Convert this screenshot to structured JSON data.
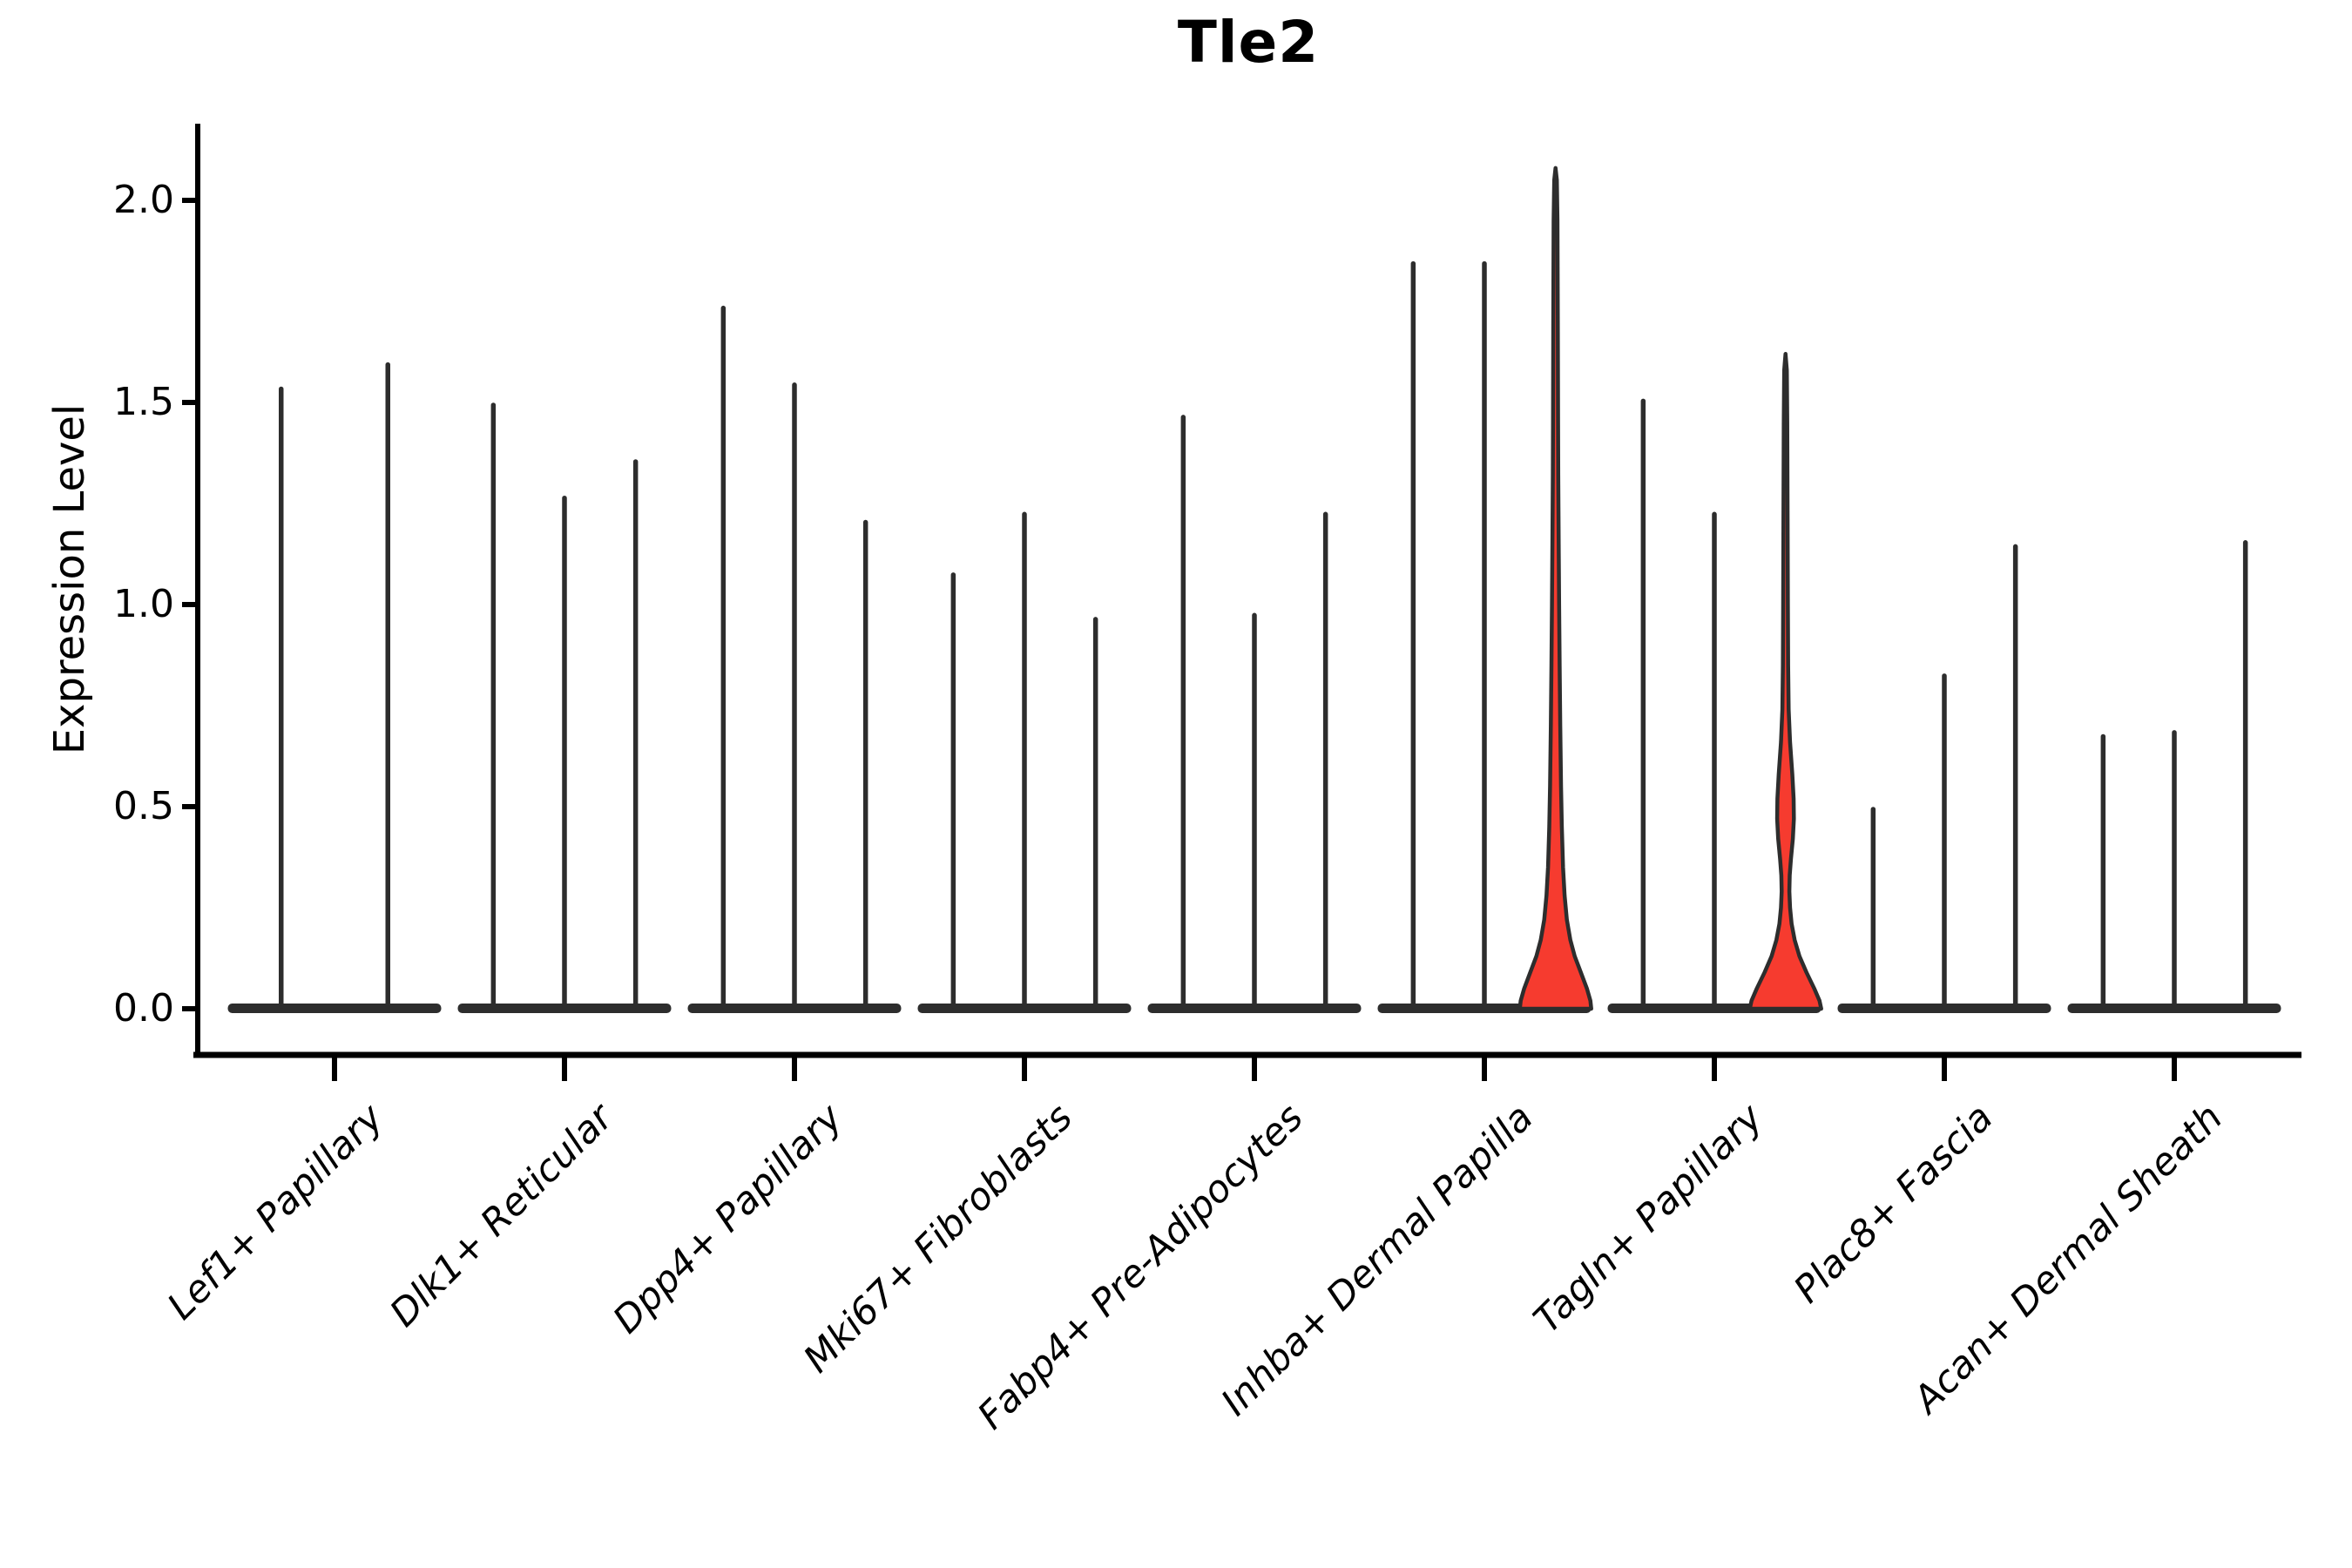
{
  "title": "Tle2",
  "y_axis": {
    "label": "Expression Level",
    "ticks": [
      {
        "label": "2.0",
        "value": 2.0
      },
      {
        "label": "1.5",
        "value": 1.5
      },
      {
        "label": "1.0",
        "value": 1.0
      },
      {
        "label": "0.5",
        "value": 0.5
      },
      {
        "label": "0.0",
        "value": 0.0
      }
    ]
  },
  "chart_data": {
    "type": "violin",
    "title": "Tle2",
    "xlabel": "",
    "ylabel": "Expression Level",
    "ylim": [
      0,
      2.2
    ],
    "grid": false,
    "legend": "none",
    "description": "Split violin plot of Tle2 expression per fibroblast cluster; most violins collapse to a baseline blob at 0 with a thin spike to the max expression; two violins are highlighted red.",
    "categories": [
      "Lef1+ Papillary",
      "Dlk1+ Reticular",
      "Dpp4+ Papillary",
      "Mki67+ Fibroblasts",
      "Fabp4+ Pre-Adipocytes",
      "Inhba+ Dermal Papilla",
      "Tagln+ Papillary",
      "Plac8+ Fascia",
      "Acan+ Dermal Sheath"
    ],
    "groups": [
      {
        "category": "Lef1+ Papillary",
        "violins": [
          {
            "max": 1.54
          },
          {
            "max": 1.6
          }
        ]
      },
      {
        "category": "Dlk1+ Reticular",
        "violins": [
          {
            "max": 1.5
          },
          {
            "max": 1.27
          },
          {
            "max": 1.36
          }
        ]
      },
      {
        "category": "Dpp4+ Papillary",
        "violins": [
          {
            "max": 1.74
          },
          {
            "max": 1.55
          },
          {
            "max": 1.21
          }
        ]
      },
      {
        "category": "Mki67+ Fibroblasts",
        "violins": [
          {
            "max": 1.08
          },
          {
            "max": 1.23
          },
          {
            "max": 0.97
          }
        ]
      },
      {
        "category": "Fabp4+ Pre-Adipocytes",
        "violins": [
          {
            "max": 1.47
          },
          {
            "max": 0.98
          },
          {
            "max": 1.23
          }
        ]
      },
      {
        "category": "Inhba+ Dermal Papilla",
        "violins": [
          {
            "max": 1.85
          },
          {
            "max": 1.85
          },
          {
            "max": 2.08,
            "highlight": true,
            "profile": [
              [
                2.08,
                0
              ],
              [
                2.05,
                1.5
              ],
              [
                1.95,
                2.2
              ],
              [
                1.7,
                2.6
              ],
              [
                1.45,
                2.9
              ],
              [
                1.32,
                3.1
              ],
              [
                1.15,
                3.6
              ],
              [
                1.0,
                4.1
              ],
              [
                0.85,
                4.7
              ],
              [
                0.7,
                5.4
              ],
              [
                0.55,
                6.3
              ],
              [
                0.45,
                7.2
              ],
              [
                0.35,
                8.6
              ],
              [
                0.28,
                10.4
              ],
              [
                0.22,
                13
              ],
              [
                0.17,
                17
              ],
              [
                0.13,
                22
              ],
              [
                0.09,
                29
              ],
              [
                0.05,
                36
              ],
              [
                0.02,
                40
              ],
              [
                0.0,
                41
              ]
            ]
          }
        ]
      },
      {
        "category": "Tagln+ Papillary",
        "violins": [
          {
            "max": 1.51
          },
          {
            "max": 1.23
          },
          {
            "max": 1.62,
            "highlight": true,
            "profile": [
              [
                1.62,
                0
              ],
              [
                1.58,
                1.5
              ],
              [
                1.45,
                2.0
              ],
              [
                1.2,
                2.4
              ],
              [
                1.0,
                2.7
              ],
              [
                0.85,
                3.0
              ],
              [
                0.74,
                3.6
              ],
              [
                0.66,
                5.2
              ],
              [
                0.58,
                7.8
              ],
              [
                0.52,
                9.3
              ],
              [
                0.47,
                9.6
              ],
              [
                0.42,
                8.4
              ],
              [
                0.37,
                6.2
              ],
              [
                0.33,
                4.8
              ],
              [
                0.29,
                4.4
              ],
              [
                0.25,
                5.2
              ],
              [
                0.21,
                7
              ],
              [
                0.17,
                10.5
              ],
              [
                0.13,
                16
              ],
              [
                0.09,
                24
              ],
              [
                0.05,
                33
              ],
              [
                0.02,
                39
              ],
              [
                0.0,
                41
              ]
            ]
          }
        ]
      },
      {
        "category": "Plac8+ Fascia",
        "violins": [
          {
            "max": 0.5
          },
          {
            "max": 0.83
          },
          {
            "max": 1.15
          }
        ]
      },
      {
        "category": "Acan+ Dermal Sheath",
        "violins": [
          {
            "max": 0.68
          },
          {
            "max": 0.69
          },
          {
            "max": 1.16
          }
        ]
      }
    ],
    "colors": {
      "violin_stroke": "#2d2d2d",
      "baseline_fill": "#2d2d2d",
      "highlight_fill": "#f63b2f",
      "axis": "#000000",
      "background": "#ffffff"
    }
  }
}
